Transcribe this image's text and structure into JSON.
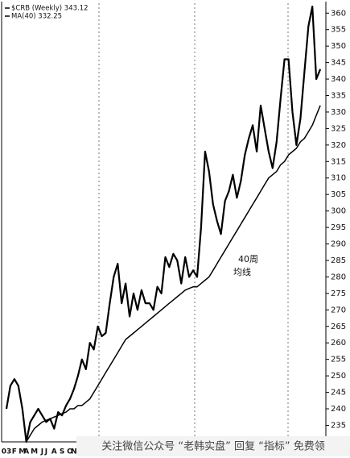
{
  "chart_data": {
    "type": "line",
    "categories": [
      "03",
      null,
      "F",
      null,
      "M",
      "A",
      null,
      "M",
      null,
      "J",
      "J",
      null,
      "A",
      null,
      "S",
      null,
      "O",
      "N",
      null,
      null,
      null,
      null,
      null,
      null,
      null,
      null,
      null,
      null,
      null,
      null,
      null,
      null,
      null,
      null,
      null,
      null,
      null,
      null,
      null,
      null,
      null,
      null,
      null,
      null,
      null,
      null,
      null,
      null,
      null,
      null,
      null,
      null,
      null,
      null,
      null,
      null,
      null,
      null,
      null,
      null,
      null,
      null,
      null,
      null,
      null,
      null,
      null,
      null,
      null,
      null,
      null,
      null,
      null,
      null,
      null,
      null,
      null,
      null,
      null,
      null
    ],
    "series": [
      {
        "name": "$CRB (Weekly) 343.12",
        "color": "#000000",
        "width": 2.2,
        "values": [
          240,
          247,
          249,
          247,
          240,
          230,
          236,
          238,
          240,
          238,
          236,
          237,
          234,
          239,
          238,
          241,
          243,
          246,
          250,
          255,
          252,
          260,
          258,
          265,
          262,
          263,
          272,
          280,
          284,
          272,
          278,
          268,
          275,
          270,
          276,
          272,
          272,
          270,
          277,
          275,
          286,
          283,
          287,
          285,
          278,
          286,
          280,
          282,
          280,
          295,
          318,
          312,
          302,
          297,
          293,
          303,
          306,
          311,
          304,
          309,
          317,
          322,
          326,
          318,
          332,
          325,
          318,
          313,
          321,
          334,
          346,
          346,
          330,
          320,
          328,
          342,
          356,
          362,
          340,
          343
        ]
      },
      {
        "name": "MA(40) 332.25",
        "color": "#000000",
        "width": 1.5,
        "values": [
          null,
          null,
          null,
          null,
          null,
          230,
          232,
          234,
          235,
          236,
          236.5,
          237,
          237.5,
          238,
          238.5,
          239,
          240,
          240,
          241,
          241,
          242,
          243,
          245,
          247,
          249,
          251,
          253,
          255,
          257,
          259,
          261,
          262,
          263,
          264,
          265,
          266,
          267,
          268,
          269,
          270,
          271,
          272,
          273,
          274,
          275,
          276,
          276.5,
          277,
          277,
          278,
          279,
          280,
          282,
          284,
          286,
          288,
          290,
          292,
          294,
          296,
          298,
          300,
          302,
          304,
          306,
          308,
          310,
          311,
          312,
          314,
          315,
          317,
          318,
          319,
          321,
          322,
          324,
          326,
          329,
          332
        ]
      }
    ],
    "ylim": [
      229,
      363
    ],
    "yticks": [
      235,
      240,
      245,
      250,
      255,
      260,
      265,
      270,
      275,
      280,
      285,
      290,
      295,
      300,
      305,
      310,
      315,
      320,
      325,
      330,
      335,
      340,
      345,
      350,
      355,
      360
    ],
    "grid": false,
    "annotations": [
      "40周",
      "均线"
    ],
    "watermark": "关注微信公众号 “老韩实盘” 回复 “指标” 免费领"
  }
}
